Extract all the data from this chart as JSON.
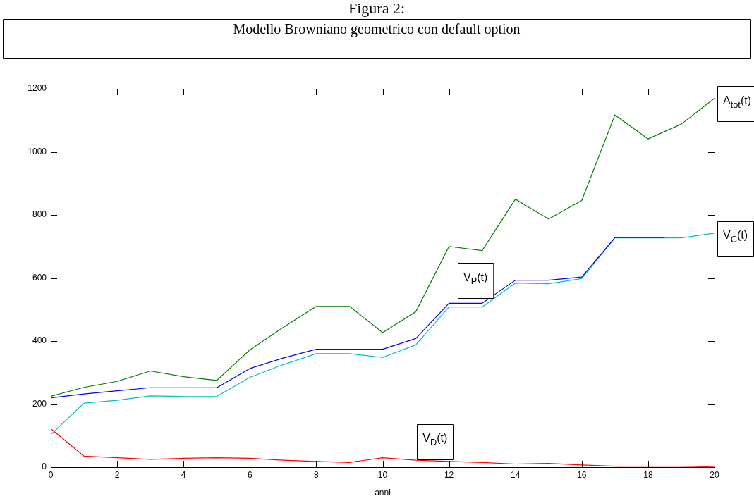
{
  "chart_data": {
    "type": "line",
    "title": "Figura 2:",
    "subtitle": "Modello Browniano geometrico con default option",
    "xlabel": "anni",
    "xlim": [
      0,
      20
    ],
    "xticks": [
      0,
      2,
      4,
      6,
      8,
      10,
      12,
      14,
      16,
      18,
      20
    ],
    "ylim": [
      0,
      1200
    ],
    "yticks": [
      0,
      200,
      400,
      600,
      800,
      1000,
      1200
    ],
    "grid": false,
    "legend": false,
    "marker": "none",
    "line_style": "solid",
    "series": [
      {
        "color": "#008000",
        "x": [
          0,
          1,
          2,
          3,
          4,
          5,
          6,
          7,
          8,
          9,
          10,
          11,
          12,
          13,
          14,
          15,
          16,
          17,
          18,
          19,
          20
        ],
        "values": [
          225,
          253,
          272,
          305,
          287,
          275,
          372,
          443,
          510,
          510,
          427,
          493,
          700,
          687,
          850,
          787,
          846,
          1117,
          1041,
          1088,
          1170
        ]
      },
      {
        "color": "#0000ff",
        "x": [
          0,
          1,
          2,
          3,
          4,
          5,
          6,
          7,
          8,
          9,
          10,
          11,
          12,
          13,
          14,
          15,
          16,
          17,
          18,
          18.5
        ],
        "values": [
          220,
          232,
          242,
          252,
          252,
          252,
          313,
          346,
          374,
          374,
          374,
          408,
          520,
          520,
          593,
          593,
          603,
          728,
          728,
          728
        ]
      },
      {
        "color": "#00bfbf",
        "x": [
          0,
          1,
          2,
          3,
          4,
          5,
          6,
          7,
          8,
          9,
          10,
          11,
          12,
          13,
          14,
          15,
          16,
          17,
          18,
          19,
          20
        ],
        "values": [
          103,
          203,
          212,
          226,
          224,
          224,
          285,
          325,
          360,
          360,
          348,
          388,
          508,
          508,
          584,
          582,
          598,
          727,
          727,
          727,
          742
        ]
      },
      {
        "color": "#ff0000",
        "x": [
          0,
          1,
          2,
          3,
          4,
          5,
          6,
          7,
          8,
          9,
          10,
          11,
          12,
          13,
          14,
          15,
          16,
          17,
          18,
          19,
          19.5,
          20
        ],
        "values": [
          122,
          35,
          30,
          25,
          28,
          30,
          28,
          22,
          18,
          15,
          30,
          22,
          18,
          15,
          10,
          12,
          7,
          3,
          3,
          3,
          2,
          0
        ]
      }
    ],
    "annotations": [
      {
        "text": "A$_{tot}$(t)",
        "x": 20,
        "y": 1170
      },
      {
        "text": "V$_{C}$(t)",
        "x": 20,
        "y": 742
      },
      "V$_{P}$(t)",
      "V$_{D}$(t)"
    ]
  }
}
